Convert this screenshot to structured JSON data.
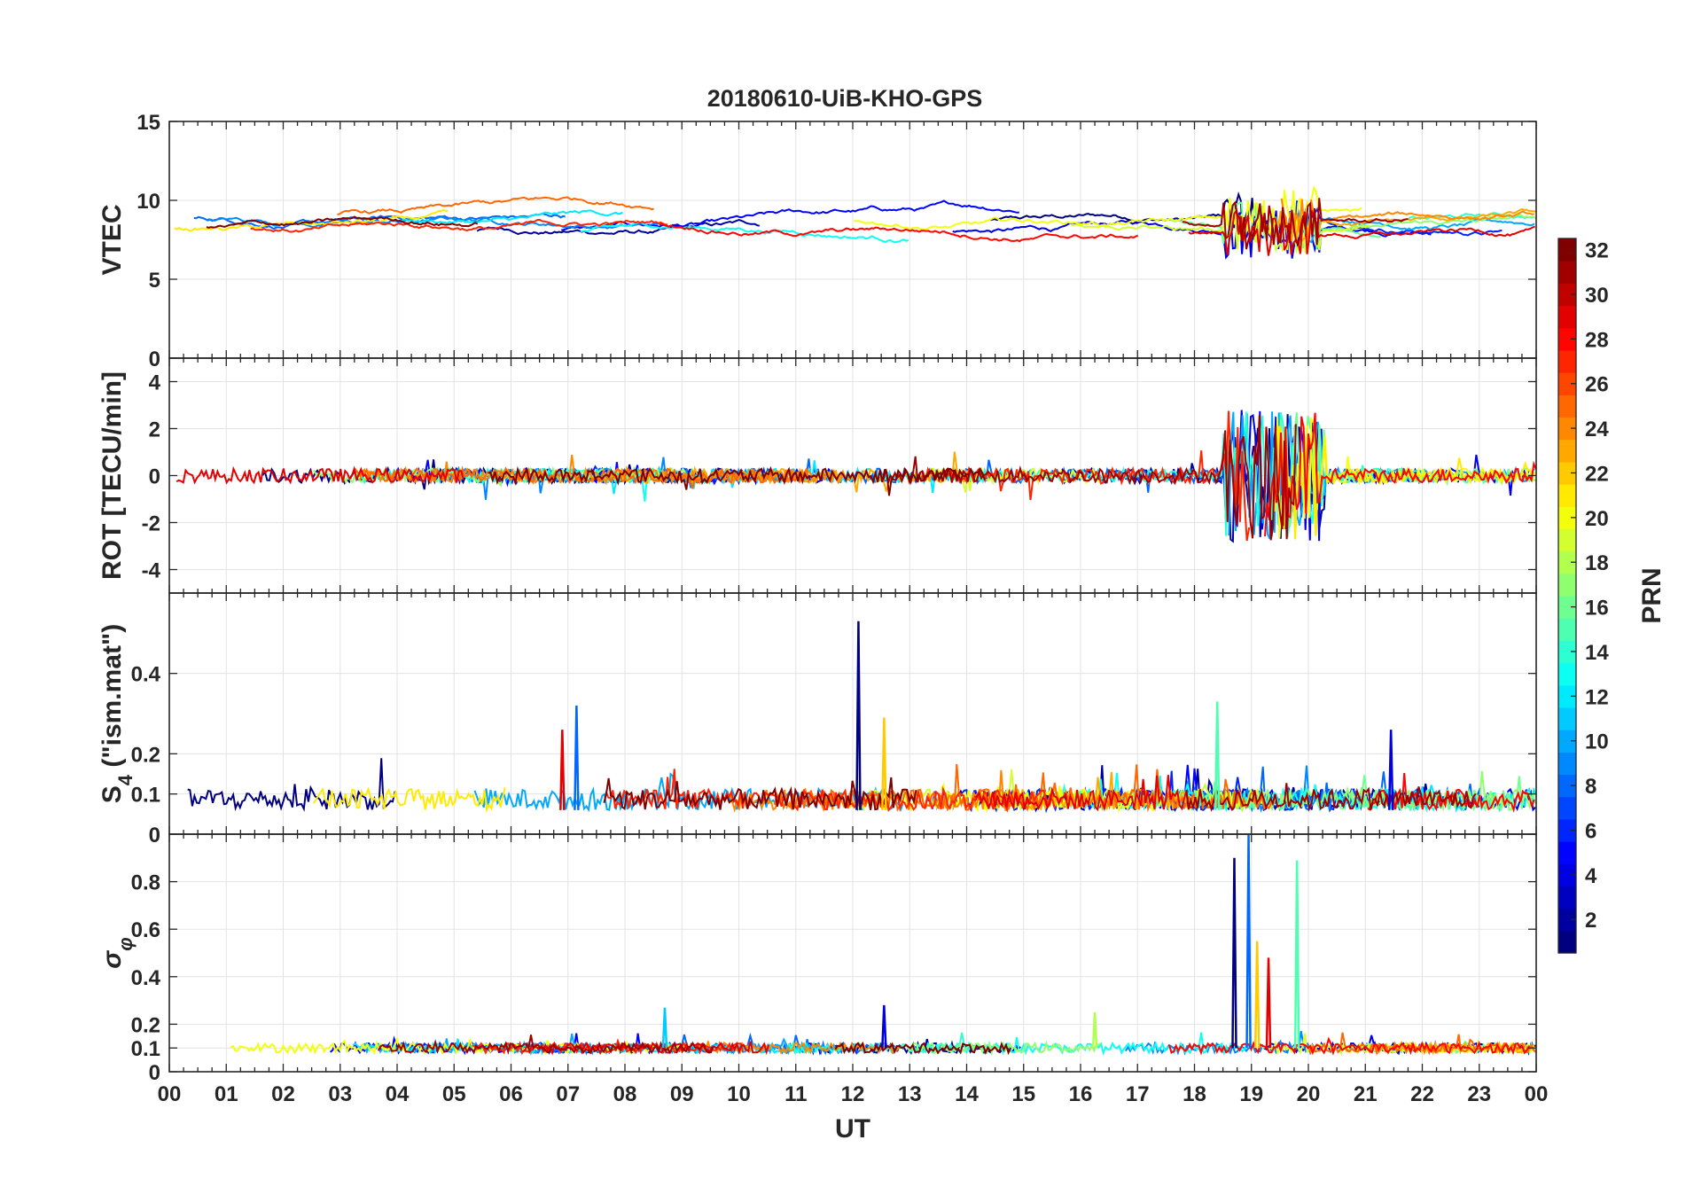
{
  "figure": {
    "title": "20180610-UiB-KHO-GPS"
  },
  "chart_data": [
    {
      "type": "line",
      "ylabel": "VTEC",
      "xlabel": "",
      "xlim": [
        0,
        24
      ],
      "ylim": [
        0,
        15
      ],
      "yticks": [
        0,
        5,
        10,
        15
      ],
      "ytick_labels": [
        "0",
        "5",
        "10",
        "15"
      ],
      "grid": true,
      "series_description": "multiple PRN satellite traces, roughly 7-11 TECU most of the day, disturbed 6-12 TECU between 18.5 and 20 UT",
      "baseline": 8.5,
      "noise": 1.2
    },
    {
      "type": "line",
      "ylabel": "ROT [TECU/min]",
      "xlabel": "",
      "xlim": [
        0,
        24
      ],
      "ylim": [
        -5,
        5
      ],
      "yticks": [
        -4,
        -2,
        0,
        2,
        4
      ],
      "ytick_labels": [
        "-4",
        "-2",
        "0",
        "2",
        "4"
      ],
      "grid": true,
      "baseline": 0,
      "noise": 0.3,
      "burst": {
        "start": 18.5,
        "end": 20.3,
        "amplitude": 3.5
      }
    },
    {
      "type": "line",
      "ylabel": "S4 (\"ism.mat\")",
      "ylabel_main": "S",
      "ylabel_sub": "4",
      "ylabel_rest": " (\"ism.mat\")",
      "xlabel": "",
      "xlim": [
        0,
        24
      ],
      "ylim": [
        0,
        0.6
      ],
      "yticks": [
        0,
        0.1,
        0.2,
        0.4
      ],
      "ytick_labels": [
        "0",
        "0.1",
        "0.2",
        "0.4"
      ],
      "grid": true,
      "baseline": 0.06,
      "noise": 0.04,
      "spikes": [
        {
          "x": 12.1,
          "y": 0.53
        },
        {
          "x": 7.15,
          "y": 0.32
        },
        {
          "x": 18.4,
          "y": 0.33
        },
        {
          "x": 12.55,
          "y": 0.29
        },
        {
          "x": 6.9,
          "y": 0.26
        },
        {
          "x": 21.45,
          "y": 0.26
        }
      ]
    },
    {
      "type": "line",
      "ylabel": "σφ",
      "ylabel_main": "σ",
      "ylabel_sub": "φ",
      "xlabel": "UT",
      "xlim": [
        0,
        24
      ],
      "ylim": [
        0,
        1
      ],
      "yticks": [
        0,
        0.1,
        0.2,
        0.4,
        0.6,
        0.8
      ],
      "ytick_labels": [
        "0",
        "0.1",
        "0.2",
        "0.4",
        "0.6",
        "0.8"
      ],
      "grid": true,
      "baseline": 0.1,
      "noise": 0.02,
      "spikes": [
        {
          "x": 18.7,
          "y": 0.9
        },
        {
          "x": 18.95,
          "y": 1.0
        },
        {
          "x": 19.8,
          "y": 0.89
        },
        {
          "x": 19.1,
          "y": 0.55
        },
        {
          "x": 19.3,
          "y": 0.48
        },
        {
          "x": 12.55,
          "y": 0.28
        },
        {
          "x": 8.7,
          "y": 0.27
        },
        {
          "x": 16.25,
          "y": 0.25
        }
      ]
    }
  ],
  "x_axis": {
    "label": "UT",
    "ticks": [
      0,
      1,
      2,
      3,
      4,
      5,
      6,
      7,
      8,
      9,
      10,
      11,
      12,
      13,
      14,
      15,
      16,
      17,
      18,
      19,
      20,
      21,
      22,
      23,
      24
    ],
    "tick_labels": [
      "00",
      "01",
      "02",
      "03",
      "04",
      "05",
      "06",
      "07",
      "08",
      "09",
      "10",
      "11",
      "12",
      "13",
      "14",
      "15",
      "16",
      "17",
      "18",
      "19",
      "20",
      "21",
      "22",
      "23",
      "00"
    ]
  },
  "colorbar": {
    "label": "PRN",
    "range": [
      1,
      32
    ],
    "ticks": [
      2,
      4,
      6,
      8,
      10,
      12,
      14,
      16,
      18,
      20,
      22,
      24,
      26,
      28,
      30,
      32
    ],
    "tick_labels": [
      "2",
      "4",
      "6",
      "8",
      "10",
      "12",
      "14",
      "16",
      "18",
      "20",
      "22",
      "24",
      "26",
      "28",
      "30",
      "32"
    ],
    "colormap": "jet"
  }
}
